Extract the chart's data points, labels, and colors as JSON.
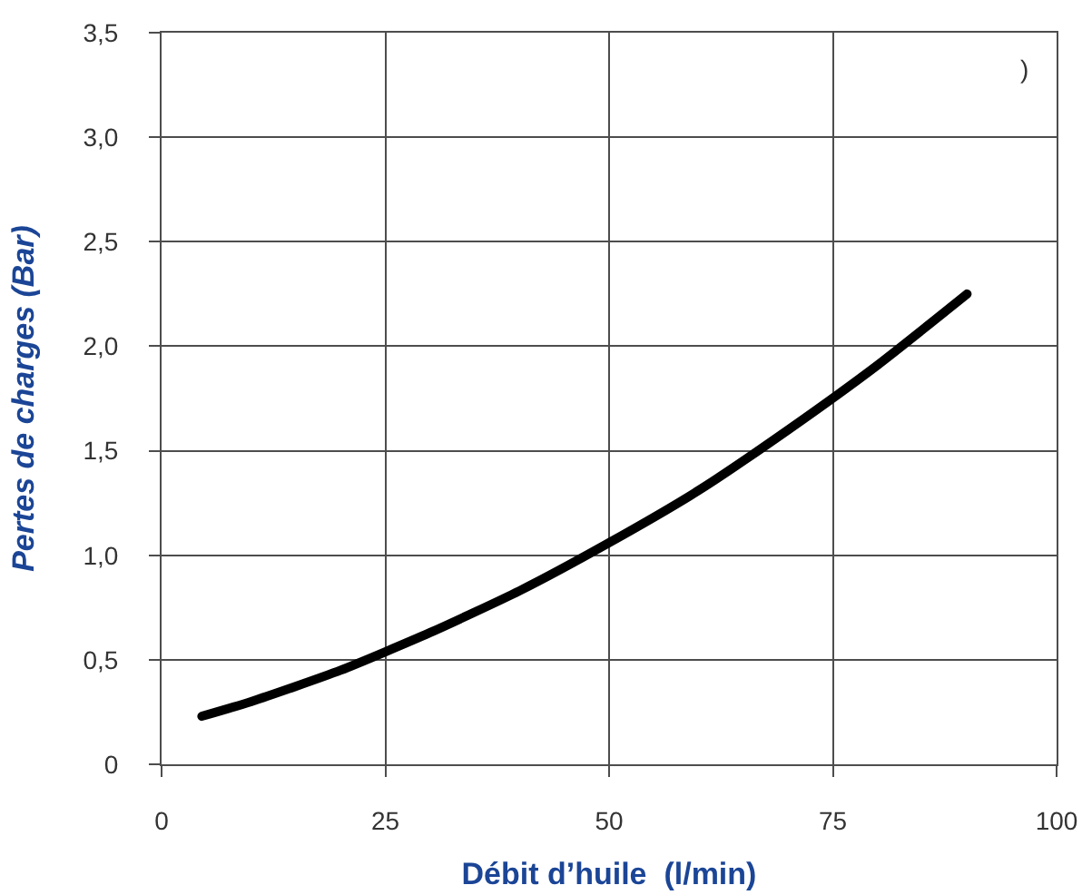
{
  "chart_data": {
    "type": "line",
    "xlabel": "Débit d’huile  (l/min)",
    "ylabel": "Pertes de charges (Bar)",
    "x": [
      4.5,
      10,
      20,
      30,
      40,
      50,
      60,
      70,
      80,
      90
    ],
    "series": [
      {
        "color": "#000000",
        "values": [
          0.23,
          0.3,
          0.45,
          0.63,
          0.83,
          1.06,
          1.31,
          1.6,
          1.91,
          2.25
        ]
      }
    ],
    "xlim": [
      0,
      100
    ],
    "xticks": [
      0,
      25,
      50,
      75,
      100
    ],
    "ylim": [
      0,
      3.5
    ],
    "yticks": [
      0,
      {
        "value": 0.5,
        "label": "0,5"
      },
      {
        "value": 1,
        "label": "1,0"
      },
      {
        "value": 1.5,
        "label": "1,5"
      },
      {
        "value": 2,
        "label": "2,0"
      },
      {
        "value": 2.5,
        "label": "2,5"
      },
      {
        "value": 3,
        "label": "3,0"
      },
      {
        "value": 3.5,
        "label": "3,5"
      }
    ],
    "grid": true,
    "line_style": "solid",
    "annotations": [
      ")"
    ]
  }
}
